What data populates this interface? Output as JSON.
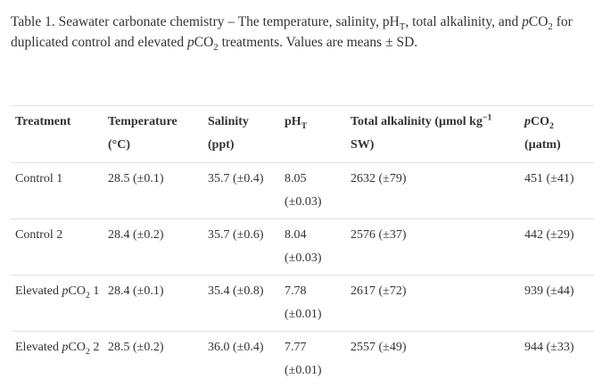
{
  "caption": [
    "Table 1. Seawater carbonate chemistry – The temperature, salinity, pH",
    "T",
    ", total alkalinity, and ",
    "p",
    "CO",
    "2",
    " for duplicated control and elevated ",
    "p",
    "CO",
    "2",
    " treatments. Values are means ± SD."
  ],
  "table": {
    "header": [
      [
        "Treatment"
      ],
      [
        "Temperature (°C)"
      ],
      [
        "Salinity (ppt)"
      ],
      [
        "pH",
        "T"
      ],
      [
        "Total alkalinity (µmol kg",
        "−1",
        " SW)"
      ],
      [
        "p",
        "CO",
        "2",
        " (µatm)"
      ]
    ],
    "rows": [
      [
        [
          "Control 1"
        ],
        "28.5 (±0.1)",
        "35.7 (±0.4)",
        "8.05 (±0.03)",
        "2632 (±79)",
        "451 (±41)"
      ],
      [
        [
          "Control 2"
        ],
        "28.4 (±0.2)",
        "35.7 (±0.6)",
        "8.04 (±0.03)",
        "2576 (±37)",
        "442 (±29)"
      ],
      [
        [
          "Elevated ",
          "p",
          "CO",
          "2",
          " 1"
        ],
        "28.4 (±0.1)",
        "35.4 (±0.8)",
        "7.78 (±0.01)",
        "2617 (±72)",
        "939 (±44)"
      ],
      [
        [
          "Elevated ",
          "p",
          "CO",
          "2",
          " 2"
        ],
        "28.5 (±0.2)",
        "36.0 (±0.4)",
        "7.77 (±0.01)",
        "2557 (±49)",
        "944 (±33)"
      ]
    ]
  }
}
